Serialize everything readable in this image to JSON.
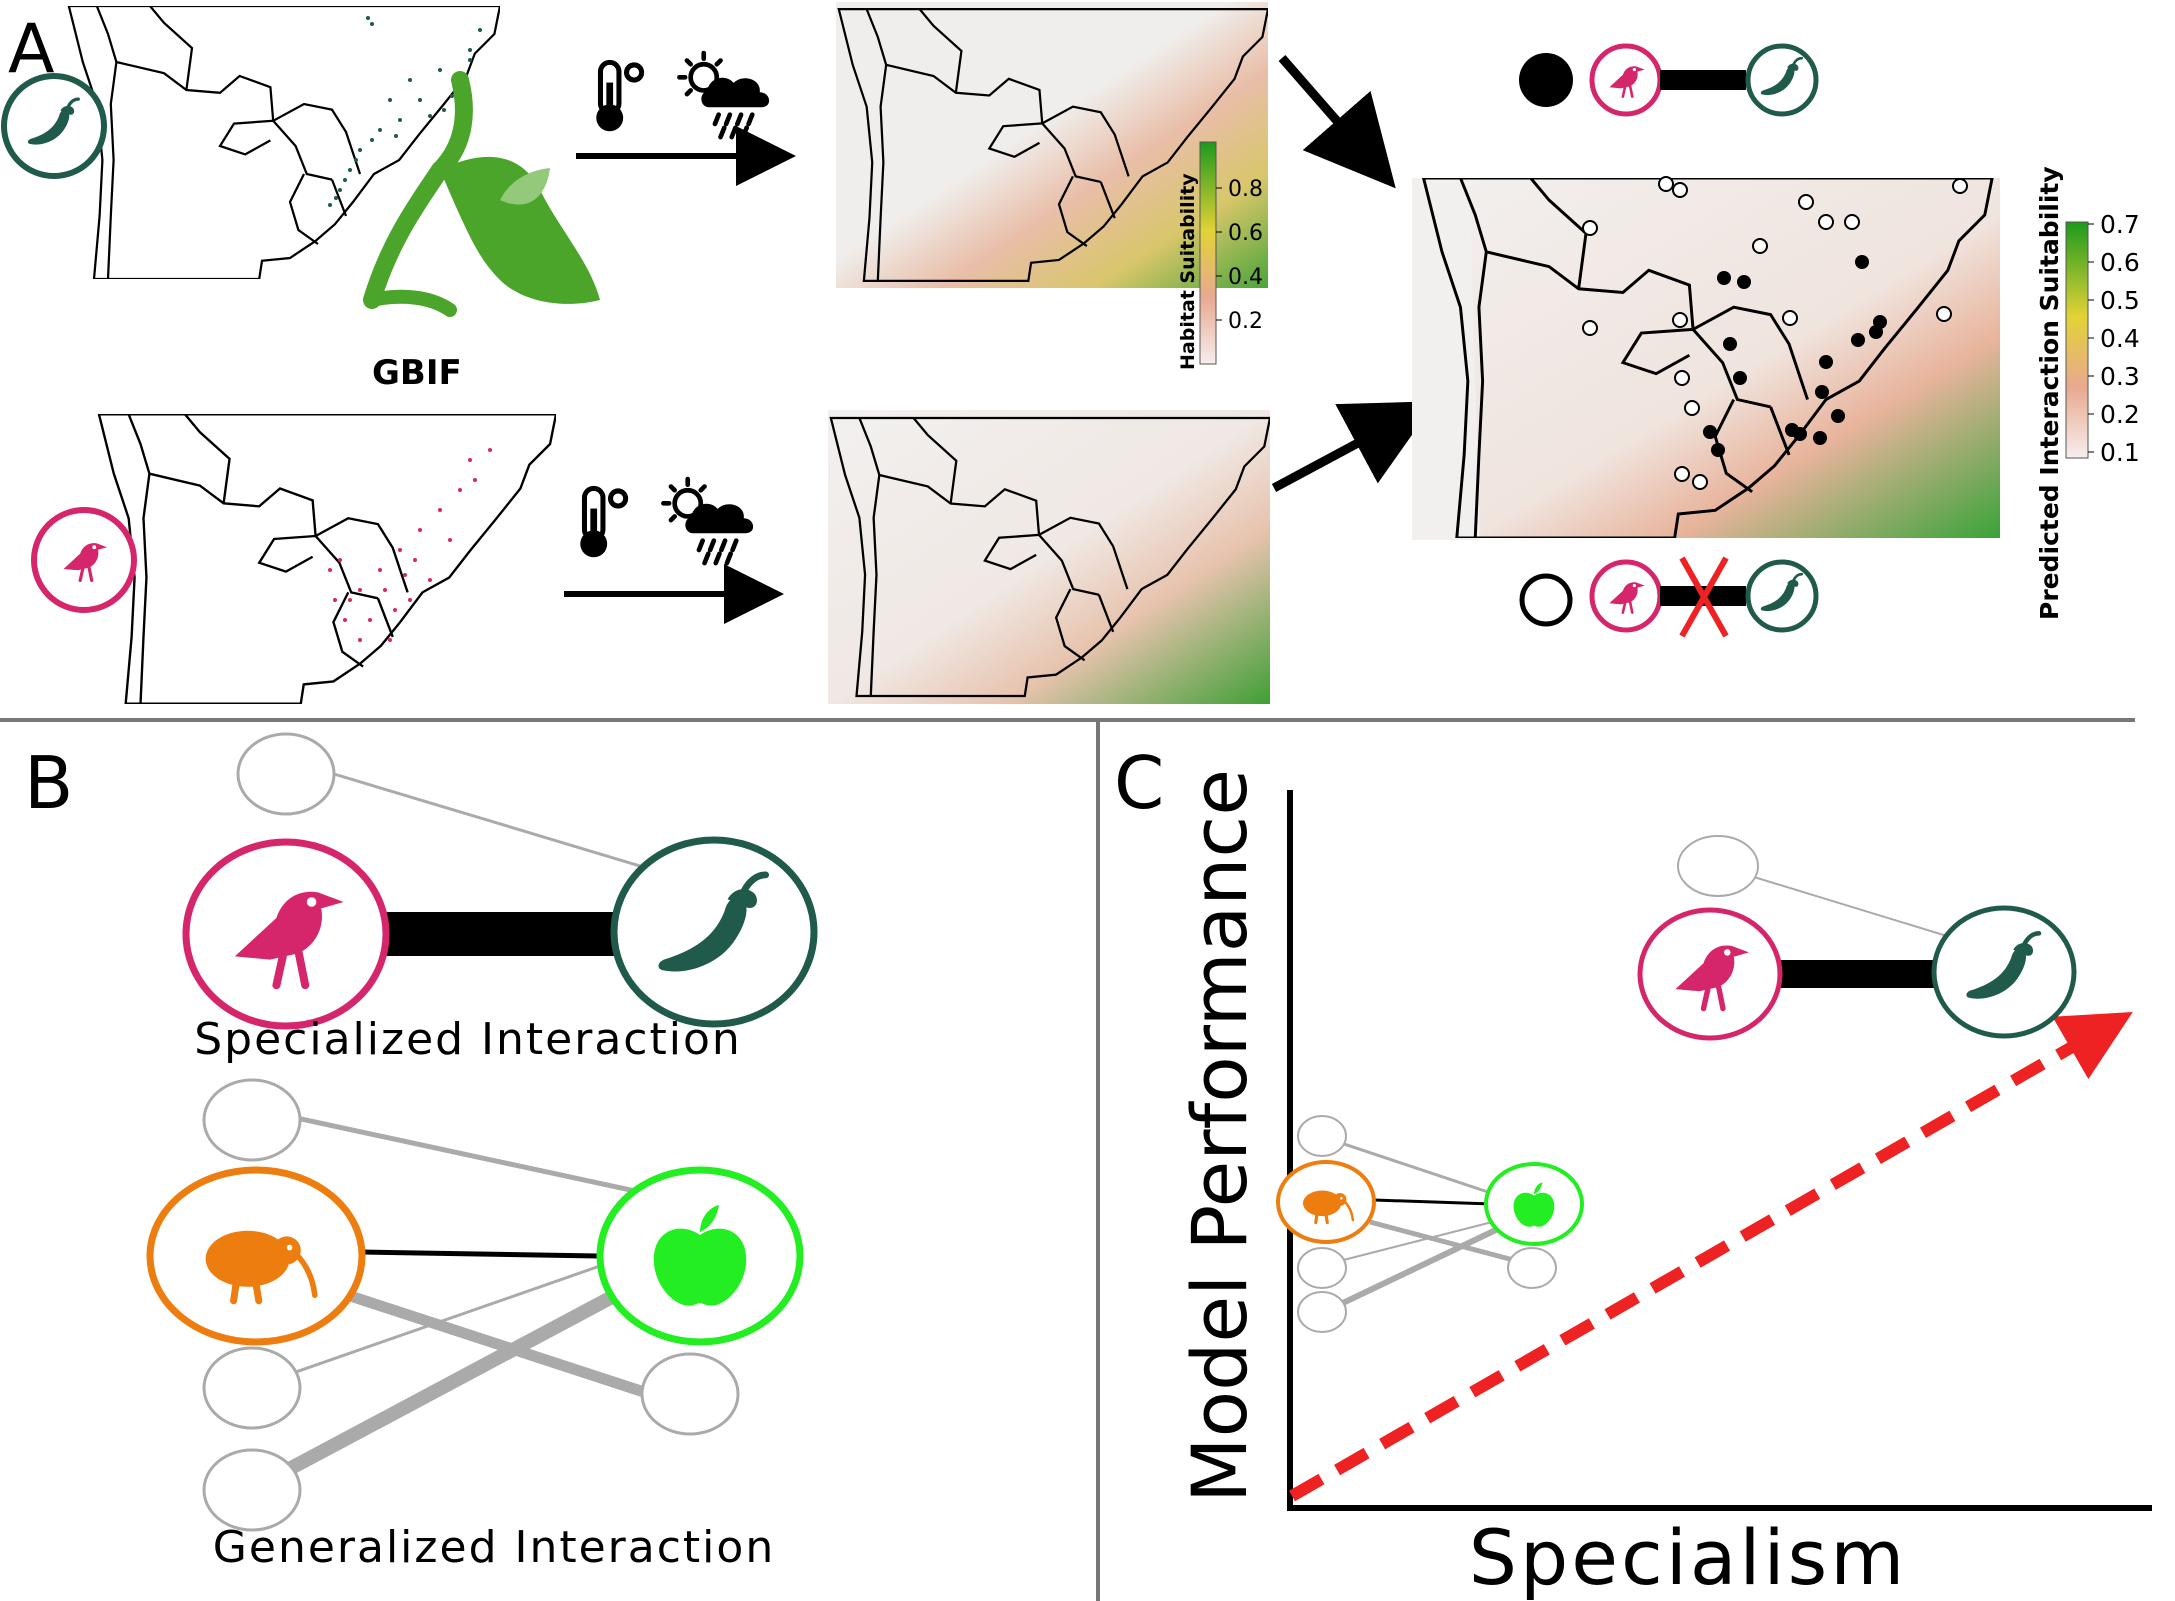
{
  "panels": {
    "a": {
      "letter": "A"
    },
    "b": {
      "letter": "B",
      "specialized_label": "Specialized Interaction",
      "generalized_label": "Generalized Interaction"
    },
    "c": {
      "letter": "C",
      "y_axis_label": "Model Performance",
      "x_axis_label": "Specialism"
    }
  },
  "gbif_logo_text": "GBIF",
  "legend_habitat": {
    "title": "Habitat Suitability",
    "ticks": [
      "0.8",
      "0.6",
      "0.4",
      "0.2"
    ]
  },
  "legend_interaction": {
    "title": "Predicted Interaction Suitability",
    "ticks": [
      "0.7",
      "0.6",
      "0.5",
      "0.4",
      "0.3",
      "0.2",
      "0.1"
    ]
  },
  "colors": {
    "bird_pink": "#d6266b",
    "plant_green": "#1f5a4a",
    "kiwi_orange": "#ee7d10",
    "apple_green": "#22ee22",
    "suitability_high": "#2f9a2f",
    "suitability_mid": "#d8d83a",
    "suitability_low": "#e8b6a0",
    "trend_arrow": "#ee2222"
  },
  "icons": [
    "chili-pepper-icon",
    "bird-icon",
    "kiwi-icon",
    "apple-icon",
    "thermometer-icon",
    "sun-cloud-rain-icon",
    "gbif-sprout-logo"
  ]
}
